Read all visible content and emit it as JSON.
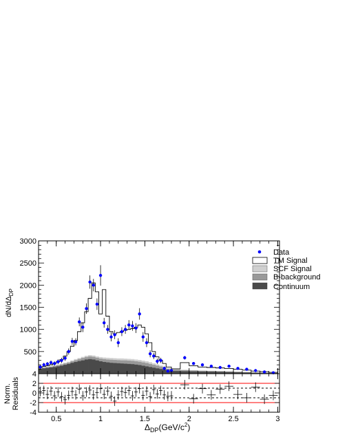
{
  "chart_data": [
    {
      "type": "histogram",
      "ylabel": "dN/dΔ",
      "ylabel_sub": "DP",
      "xlim": [
        0.3,
        3.02
      ],
      "ylim": [
        0,
        3000
      ],
      "x_ticks": [
        0.5,
        1,
        1.5,
        2,
        2.5,
        3
      ],
      "x_tick_labels": [
        "0.5",
        "1",
        "1.5",
        "2",
        "2.5",
        "3"
      ],
      "y_ticks": [
        500,
        1000,
        1500,
        2000,
        2500,
        3000
      ],
      "y_tick_labels": [
        "500",
        "1000",
        "1500",
        "2000",
        "2500",
        "3000"
      ],
      "grid": false,
      "legend_position": "top-right",
      "legend": [
        {
          "label": "Data",
          "style": "marker",
          "color": "#0000ff"
        },
        {
          "label": "TM Signal",
          "style": "outline",
          "color": "#ffffff"
        },
        {
          "label": "SCF Signal",
          "style": "fill",
          "color": "#d0d0d0"
        },
        {
          "label": "B-background",
          "style": "fill",
          "color": "#999999"
        },
        {
          "label": "Continuum",
          "style": "fill",
          "color": "#4a4a4a"
        }
      ],
      "bins": [
        0.3,
        0.34,
        0.38,
        0.42,
        0.46,
        0.5,
        0.54,
        0.58,
        0.62,
        0.66,
        0.7,
        0.74,
        0.78,
        0.82,
        0.86,
        0.9,
        0.94,
        0.98,
        1.02,
        1.06,
        1.1,
        1.14,
        1.18,
        1.22,
        1.26,
        1.3,
        1.34,
        1.38,
        1.42,
        1.46,
        1.5,
        1.54,
        1.58,
        1.62,
        1.66,
        1.7,
        1.74,
        1.8,
        1.9,
        2.0,
        2.1,
        2.2,
        2.3,
        2.4,
        2.5,
        2.6,
        2.7,
        2.8,
        2.9,
        3.0
      ],
      "series": [
        {
          "name": "Continuum",
          "color": "#4a4a4a",
          "values": [
            110,
            120,
            130,
            140,
            150,
            165,
            180,
            200,
            220,
            245,
            265,
            285,
            300,
            320,
            330,
            320,
            300,
            280,
            265,
            255,
            245,
            240,
            235,
            230,
            225,
            220,
            215,
            205,
            195,
            180,
            165,
            150,
            135,
            120,
            105,
            90,
            70,
            60,
            55,
            52,
            48,
            45,
            42,
            38,
            32,
            27,
            22,
            18,
            15
          ]
        },
        {
          "name": "B-background",
          "color": "#999999",
          "values": [
            125,
            135,
            150,
            160,
            175,
            190,
            210,
            230,
            250,
            280,
            305,
            330,
            355,
            375,
            390,
            380,
            360,
            340,
            330,
            320,
            315,
            310,
            305,
            300,
            300,
            295,
            290,
            280,
            270,
            255,
            240,
            220,
            200,
            180,
            160,
            140,
            110,
            90,
            80,
            72,
            65,
            60,
            55,
            48,
            42,
            35,
            28,
            22,
            18
          ]
        },
        {
          "name": "SCF Signal",
          "color": "#d0d0d0",
          "values": [
            130,
            140,
            160,
            170,
            185,
            205,
            225,
            250,
            270,
            300,
            330,
            355,
            380,
            405,
            420,
            410,
            390,
            375,
            365,
            360,
            355,
            350,
            345,
            345,
            340,
            335,
            330,
            320,
            310,
            295,
            280,
            260,
            235,
            210,
            185,
            160,
            125,
            100,
            88,
            80,
            72,
            66,
            60,
            52,
            46,
            38,
            30,
            24,
            20
          ]
        },
        {
          "name": "TM Signal",
          "color": "#ffffff",
          "values": [
            140,
            160,
            180,
            200,
            230,
            270,
            320,
            400,
            500,
            620,
            750,
            950,
            1150,
            1400,
            1700,
            2050,
            1850,
            1350,
            1900,
            1300,
            950,
            900,
            930,
            950,
            980,
            1000,
            1020,
            1050,
            1100,
            1050,
            900,
            700,
            500,
            380,
            300,
            230,
            150,
            110,
            250,
            180,
            150,
            140,
            130,
            115,
            100,
            80,
            60,
            45,
            30
          ]
        },
        {
          "name": "Data",
          "color": "#0000ff",
          "points": [
            {
              "x": 0.32,
              "y": 150,
              "e": 40
            },
            {
              "x": 0.36,
              "y": 200,
              "e": 45
            },
            {
              "x": 0.4,
              "y": 220,
              "e": 45
            },
            {
              "x": 0.44,
              "y": 250,
              "e": 50
            },
            {
              "x": 0.48,
              "y": 230,
              "e": 50
            },
            {
              "x": 0.52,
              "y": 270,
              "e": 55
            },
            {
              "x": 0.56,
              "y": 300,
              "e": 60
            },
            {
              "x": 0.6,
              "y": 350,
              "e": 60
            },
            {
              "x": 0.64,
              "y": 500,
              "e": 70
            },
            {
              "x": 0.68,
              "y": 730,
              "e": 80
            },
            {
              "x": 0.72,
              "y": 720,
              "e": 80
            },
            {
              "x": 0.76,
              "y": 1170,
              "e": 100
            },
            {
              "x": 0.8,
              "y": 1050,
              "e": 110
            },
            {
              "x": 0.84,
              "y": 1470,
              "e": 120
            },
            {
              "x": 0.88,
              "y": 2070,
              "e": 150
            },
            {
              "x": 0.92,
              "y": 2000,
              "e": 140
            },
            {
              "x": 0.96,
              "y": 1570,
              "e": 130
            },
            {
              "x": 1.0,
              "y": 2220,
              "e": 230
            },
            {
              "x": 1.04,
              "y": 1150,
              "e": 110
            },
            {
              "x": 1.08,
              "y": 1000,
              "e": 100
            },
            {
              "x": 1.12,
              "y": 830,
              "e": 100
            },
            {
              "x": 1.16,
              "y": 880,
              "e": 100
            },
            {
              "x": 1.2,
              "y": 700,
              "e": 100
            },
            {
              "x": 1.24,
              "y": 950,
              "e": 100
            },
            {
              "x": 1.28,
              "y": 1000,
              "e": 100
            },
            {
              "x": 1.32,
              "y": 1100,
              "e": 110
            },
            {
              "x": 1.36,
              "y": 1080,
              "e": 110
            },
            {
              "x": 1.4,
              "y": 1030,
              "e": 110
            },
            {
              "x": 1.44,
              "y": 1350,
              "e": 130
            },
            {
              "x": 1.48,
              "y": 830,
              "e": 110
            },
            {
              "x": 1.52,
              "y": 700,
              "e": 100
            },
            {
              "x": 1.56,
              "y": 450,
              "e": 80
            },
            {
              "x": 1.6,
              "y": 400,
              "e": 70
            },
            {
              "x": 1.64,
              "y": 280,
              "e": 60
            },
            {
              "x": 1.68,
              "y": 300,
              "e": 60
            },
            {
              "x": 1.72,
              "y": 120,
              "e": 40
            },
            {
              "x": 1.76,
              "y": 60,
              "e": 30
            },
            {
              "x": 1.8,
              "y": 70,
              "e": 30
            },
            {
              "x": 1.95,
              "y": 360,
              "e": 40
            },
            {
              "x": 2.05,
              "y": 230,
              "e": 30
            },
            {
              "x": 2.15,
              "y": 200,
              "e": 30
            },
            {
              "x": 2.25,
              "y": 170,
              "e": 25
            },
            {
              "x": 2.35,
              "y": 140,
              "e": 25
            },
            {
              "x": 2.45,
              "y": 170,
              "e": 25
            },
            {
              "x": 2.55,
              "y": 120,
              "e": 20
            },
            {
              "x": 2.65,
              "y": 100,
              "e": 20
            },
            {
              "x": 2.75,
              "y": 70,
              "e": 20
            },
            {
              "x": 2.85,
              "y": 40,
              "e": 15
            },
            {
              "x": 2.95,
              "y": 20,
              "e": 15
            }
          ]
        }
      ]
    },
    {
      "type": "scatter",
      "xlabel": "Δ",
      "xlabel_sub": "DP",
      "xlabel_units": "(GeV/c",
      "xlabel_sup": "2",
      "xlabel_close": ")",
      "ylabel": [
        "Norm.",
        "Residuals"
      ],
      "xlim": [
        0.3,
        3.02
      ],
      "ylim": [
        -4,
        4
      ],
      "x_ticks": [
        0.5,
        1,
        1.5,
        2,
        2.5,
        3
      ],
      "x_tick_labels": [
        "0.5",
        "1",
        "1.5",
        "2",
        "2.5",
        "3"
      ],
      "y_ticks": [
        -4,
        -2,
        0,
        2,
        4
      ],
      "y_tick_labels": [
        "-4",
        "-2",
        "0",
        "2",
        "4"
      ],
      "reference_lines": [
        {
          "y": 2,
          "color": "#ff0000",
          "style": "solid"
        },
        {
          "y": -2,
          "color": "#ff0000",
          "style": "solid"
        },
        {
          "y": 1,
          "color": "#000000",
          "style": "dashed"
        },
        {
          "y": -1,
          "color": "#000000",
          "style": "dashed"
        }
      ],
      "points": [
        {
          "x": 0.32,
          "y": 0.3
        },
        {
          "x": 0.36,
          "y": 0.5
        },
        {
          "x": 0.4,
          "y": -0.3
        },
        {
          "x": 0.44,
          "y": 0.4
        },
        {
          "x": 0.48,
          "y": -0.6
        },
        {
          "x": 0.52,
          "y": 0.2
        },
        {
          "x": 0.56,
          "y": -0.8
        },
        {
          "x": 0.6,
          "y": -1.4
        },
        {
          "x": 0.64,
          "y": -0.5
        },
        {
          "x": 0.68,
          "y": 0.3
        },
        {
          "x": 0.72,
          "y": -0.4
        },
        {
          "x": 0.76,
          "y": 0.8
        },
        {
          "x": 0.8,
          "y": -0.6
        },
        {
          "x": 0.84,
          "y": 0.2
        },
        {
          "x": 0.88,
          "y": 0.6
        },
        {
          "x": 0.92,
          "y": -0.4
        },
        {
          "x": 0.96,
          "y": 0.1
        },
        {
          "x": 1.0,
          "y": 0.9
        },
        {
          "x": 1.04,
          "y": -0.3
        },
        {
          "x": 1.08,
          "y": 0.4
        },
        {
          "x": 1.12,
          "y": -0.7
        },
        {
          "x": 1.16,
          "y": -1.7
        },
        {
          "x": 1.2,
          "y": -0.4
        },
        {
          "x": 1.24,
          "y": 0.3
        },
        {
          "x": 1.28,
          "y": 0.1
        },
        {
          "x": 1.32,
          "y": 0.5
        },
        {
          "x": 1.36,
          "y": -0.6
        },
        {
          "x": 1.4,
          "y": 0.2
        },
        {
          "x": 1.44,
          "y": 0.9
        },
        {
          "x": 1.48,
          "y": -0.5
        },
        {
          "x": 1.52,
          "y": 0.4
        },
        {
          "x": 1.56,
          "y": -0.8
        },
        {
          "x": 1.6,
          "y": 0.7
        },
        {
          "x": 1.64,
          "y": -0.2
        },
        {
          "x": 1.68,
          "y": 0.5
        },
        {
          "x": 1.72,
          "y": -0.4
        },
        {
          "x": 1.76,
          "y": -0.7
        },
        {
          "x": 1.8,
          "y": -0.6
        },
        {
          "x": 1.95,
          "y": 1.7
        },
        {
          "x": 2.05,
          "y": -1.2
        },
        {
          "x": 2.15,
          "y": 0.9
        },
        {
          "x": 2.25,
          "y": -0.4
        },
        {
          "x": 2.35,
          "y": 0.8
        },
        {
          "x": 2.45,
          "y": 1.4
        },
        {
          "x": 2.55,
          "y": -0.3
        },
        {
          "x": 2.65,
          "y": -1.0
        },
        {
          "x": 2.75,
          "y": 1.2
        },
        {
          "x": 2.85,
          "y": -1.3
        },
        {
          "x": 2.95,
          "y": -0.5
        }
      ]
    }
  ]
}
